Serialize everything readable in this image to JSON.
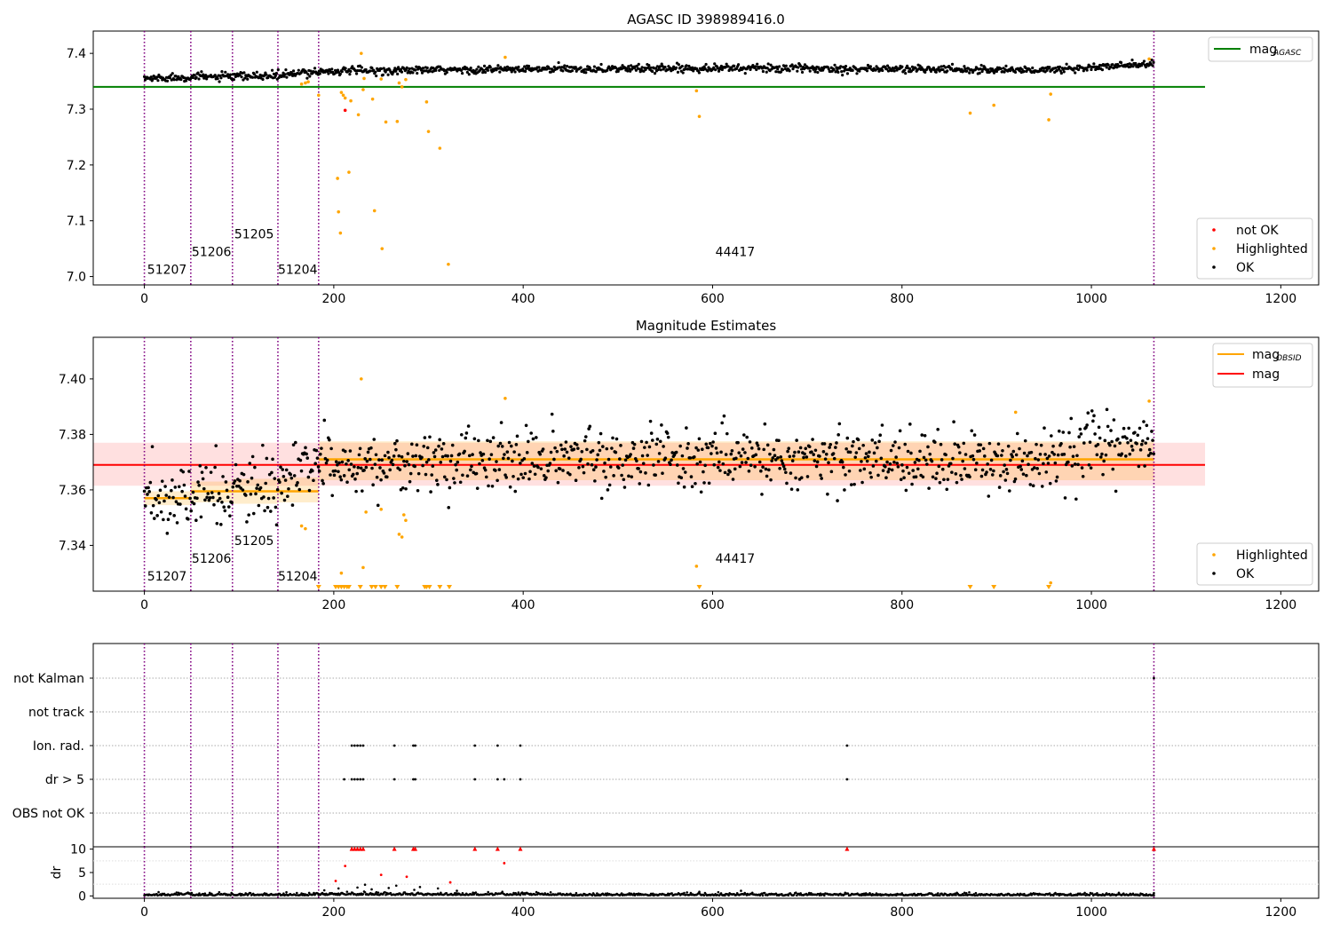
{
  "chart_data": [
    {
      "type": "scatter",
      "title": "AGASC ID 398989416.0",
      "xlabel": "",
      "ylabel": "",
      "xlim": [
        -54,
        1240
      ],
      "ylim": [
        6.985,
        7.44
      ],
      "xticks": [
        0,
        200,
        400,
        600,
        800,
        1000,
        1200
      ],
      "yticks": [
        7.0,
        7.1,
        7.2,
        7.3,
        7.4
      ],
      "ytick_labels": [
        "7.0",
        "7.1",
        "7.2",
        "7.3",
        "7.4"
      ],
      "obsid_boundaries": [
        0,
        49,
        93,
        141,
        184,
        1066
      ],
      "obsid_labels": [
        {
          "text": "51207",
          "x": 3,
          "y": 7.0
        },
        {
          "text": "51206",
          "x": 50,
          "y": 7.032
        },
        {
          "text": "51205",
          "x": 95,
          "y": 7.064
        },
        {
          "text": "51204",
          "x": 141,
          "y": 7.0
        },
        {
          "text": "44417",
          "x": 603,
          "y": 7.032
        }
      ],
      "mag_agasc": {
        "value": 7.34,
        "x_range": [
          -54,
          1120
        ]
      },
      "ok_trend": [
        [
          0,
          7.355
        ],
        [
          50,
          7.358
        ],
        [
          93,
          7.358
        ],
        [
          141,
          7.36
        ],
        [
          184,
          7.368
        ],
        [
          300,
          7.37
        ],
        [
          450,
          7.372
        ],
        [
          600,
          7.374
        ],
        [
          800,
          7.372
        ],
        [
          950,
          7.37
        ],
        [
          1066,
          7.381
        ]
      ],
      "highlighted": [
        [
          184,
          7.325
        ],
        [
          204,
          7.176
        ],
        [
          205,
          7.116
        ],
        [
          207,
          7.078
        ],
        [
          208,
          7.33
        ],
        [
          210,
          7.325
        ],
        [
          212,
          7.32
        ],
        [
          216,
          7.187
        ],
        [
          218,
          7.315
        ],
        [
          226,
          7.29
        ],
        [
          229,
          7.4
        ],
        [
          231,
          7.335
        ],
        [
          232,
          7.355
        ],
        [
          241,
          7.318
        ],
        [
          243,
          7.118
        ],
        [
          250,
          7.354
        ],
        [
          251,
          7.05
        ],
        [
          255,
          7.277
        ],
        [
          267,
          7.278
        ],
        [
          269,
          7.347
        ],
        [
          272,
          7.34
        ],
        [
          276,
          7.353
        ],
        [
          298,
          7.313
        ],
        [
          300,
          7.26
        ],
        [
          312,
          7.23
        ],
        [
          321,
          7.022
        ],
        [
          381,
          7.393
        ],
        [
          583,
          7.333
        ],
        [
          586,
          7.287
        ],
        [
          872,
          7.293
        ],
        [
          897,
          7.307
        ],
        [
          955,
          7.281
        ],
        [
          957,
          7.327
        ],
        [
          1061,
          7.39
        ],
        [
          166,
          7.345
        ],
        [
          170,
          7.347
        ],
        [
          173,
          7.349
        ]
      ],
      "not_ok": [
        [
          212,
          7.298
        ]
      ],
      "legend_line": [
        {
          "label": "mag",
          "subscript": "AGASC",
          "color": "#008000"
        }
      ],
      "legend_points": [
        {
          "label": "not OK",
          "color": "#ff0000"
        },
        {
          "label": "Highlighted",
          "color": "#ffa500"
        },
        {
          "label": "OK",
          "color": "#000000"
        }
      ]
    },
    {
      "type": "scatter",
      "title": "Magnitude Estimates",
      "xlabel": "",
      "ylabel": "",
      "xlim": [
        -54,
        1240
      ],
      "ylim": [
        7.3235,
        7.415
      ],
      "xticks": [
        0,
        200,
        400,
        600,
        800,
        1000,
        1200
      ],
      "yticks": [
        7.34,
        7.36,
        7.38,
        7.4
      ],
      "ytick_labels": [
        "7.34",
        "7.36",
        "7.38",
        "7.40"
      ],
      "obsid_boundaries": [
        0,
        49,
        93,
        141,
        184,
        1066
      ],
      "obsid_labels": [
        {
          "text": "51207",
          "x": 3,
          "y": 7.3263
        },
        {
          "text": "51206",
          "x": 50,
          "y": 7.3327
        },
        {
          "text": "51205",
          "x": 95,
          "y": 7.3391
        },
        {
          "text": "51204",
          "x": 141,
          "y": 7.3263
        },
        {
          "text": "44417",
          "x": 603,
          "y": 7.3327
        }
      ],
      "mag_overall": {
        "value": 7.369,
        "band": [
          7.3615,
          7.377
        ],
        "x_range": [
          -54,
          1120
        ]
      },
      "mag_obsid": [
        {
          "x": [
            0,
            49
          ],
          "value": 7.357,
          "band": [
            7.3545,
            7.3595
          ]
        },
        {
          "x": [
            49,
            93
          ],
          "value": 7.3595,
          "band": [
            7.3555,
            7.363
          ]
        },
        {
          "x": [
            93,
            141
          ],
          "value": 7.3595,
          "band": [
            7.355,
            7.364
          ]
        },
        {
          "x": [
            141,
            184
          ],
          "value": 7.3595,
          "band": [
            7.3555,
            7.3645
          ]
        },
        {
          "x": [
            184,
            1066
          ],
          "value": 7.371,
          "band": [
            7.3635,
            7.3775
          ]
        }
      ],
      "ok_trend": [
        [
          0,
          7.356
        ],
        [
          49,
          7.358
        ],
        [
          93,
          7.359
        ],
        [
          141,
          7.36
        ],
        [
          184,
          7.369
        ],
        [
          300,
          7.37
        ],
        [
          450,
          7.371
        ],
        [
          600,
          7.372
        ],
        [
          800,
          7.371
        ],
        [
          950,
          7.37
        ],
        [
          1066,
          7.379
        ]
      ],
      "highlighted": [
        [
          229,
          7.4
        ],
        [
          231,
          7.332
        ],
        [
          208,
          7.33
        ],
        [
          234,
          7.352
        ],
        [
          250,
          7.353
        ],
        [
          269,
          7.344
        ],
        [
          272,
          7.343
        ],
        [
          274,
          7.351
        ],
        [
          276,
          7.349
        ],
        [
          166,
          7.347
        ],
        [
          170,
          7.346
        ],
        [
          381,
          7.393
        ],
        [
          583,
          7.3325
        ],
        [
          920,
          7.388
        ],
        [
          957,
          7.3265
        ],
        [
          1061,
          7.392
        ]
      ],
      "clipped_low_x": [
        184,
        202,
        205,
        208,
        211,
        214,
        216,
        228,
        240,
        244,
        250,
        254,
        267,
        296,
        298,
        301,
        312,
        322,
        586,
        872,
        897,
        955
      ],
      "legend_line": [
        {
          "label": "mag",
          "subscript": "OBSID",
          "color": "#ffa500"
        },
        {
          "label": "mag",
          "subscript": "",
          "color": "#ff0000"
        }
      ],
      "legend_points": [
        {
          "label": "Highlighted",
          "color": "#ffa500"
        },
        {
          "label": "OK",
          "color": "#000000"
        }
      ]
    },
    {
      "type": "scatter",
      "title": "",
      "xlabel": "",
      "ylabel": "",
      "xlim": [
        -54,
        1240
      ],
      "xticks": [
        0,
        200,
        400,
        600,
        800,
        1000,
        1200
      ],
      "flag_categories": [
        "not Kalman",
        "not track",
        "Ion. rad.",
        "dr > 5",
        "OBS not OK"
      ],
      "flags": {
        "not Kalman": [
          1066
        ],
        "not track": [],
        "Ion. rad.": [
          219,
          222,
          225,
          228,
          231,
          264,
          284,
          286,
          349,
          373,
          397,
          742
        ],
        "dr > 5": [
          211,
          219,
          222,
          225,
          228,
          231,
          264,
          284,
          286,
          349,
          373,
          380,
          397,
          742
        ],
        "OBS not OK": []
      },
      "obsid_boundaries": [
        0,
        49,
        93,
        141,
        184,
        1066
      ]
    },
    {
      "type": "scatter",
      "title": "",
      "xlabel": "",
      "ylabel": "dr",
      "xlim": [
        -54,
        1240
      ],
      "ylim": [
        -0.5,
        10.5
      ],
      "xticks": [
        0,
        200,
        400,
        600,
        800,
        1000,
        1200
      ],
      "yticks": [
        0,
        5,
        10
      ],
      "ytick_labels": [
        "0",
        "5",
        "10"
      ],
      "dr_high": [
        [
          202,
          3.2
        ],
        [
          212,
          6.4
        ],
        [
          250,
          4.5
        ],
        [
          277,
          4.1
        ],
        [
          323,
          2.9
        ],
        [
          380,
          7.0
        ]
      ],
      "dr_clipped_x": [
        219,
        222,
        225,
        228,
        231,
        264,
        284,
        286,
        349,
        373,
        397,
        742,
        1066
      ],
      "dr_noise": [
        [
          150,
          0.8
        ],
        [
          190,
          1.2
        ],
        [
          196,
          0.6
        ],
        [
          205,
          1.6
        ],
        [
          214,
          0.9
        ],
        [
          225,
          1.8
        ],
        [
          233,
          2.4
        ],
        [
          240,
          1.4
        ],
        [
          245,
          0.8
        ],
        [
          258,
          1.7
        ],
        [
          266,
          2.2
        ],
        [
          285,
          1.3
        ],
        [
          291,
          1.9
        ],
        [
          310,
          1.6
        ],
        [
          330,
          1.1
        ],
        [
          347,
          0.7
        ],
        [
          586,
          0.9
        ],
        [
          630,
          1.1
        ],
        [
          1066,
          0.6
        ]
      ],
      "obsid_boundaries": [
        0,
        49,
        93,
        141,
        184,
        1066
      ]
    }
  ]
}
